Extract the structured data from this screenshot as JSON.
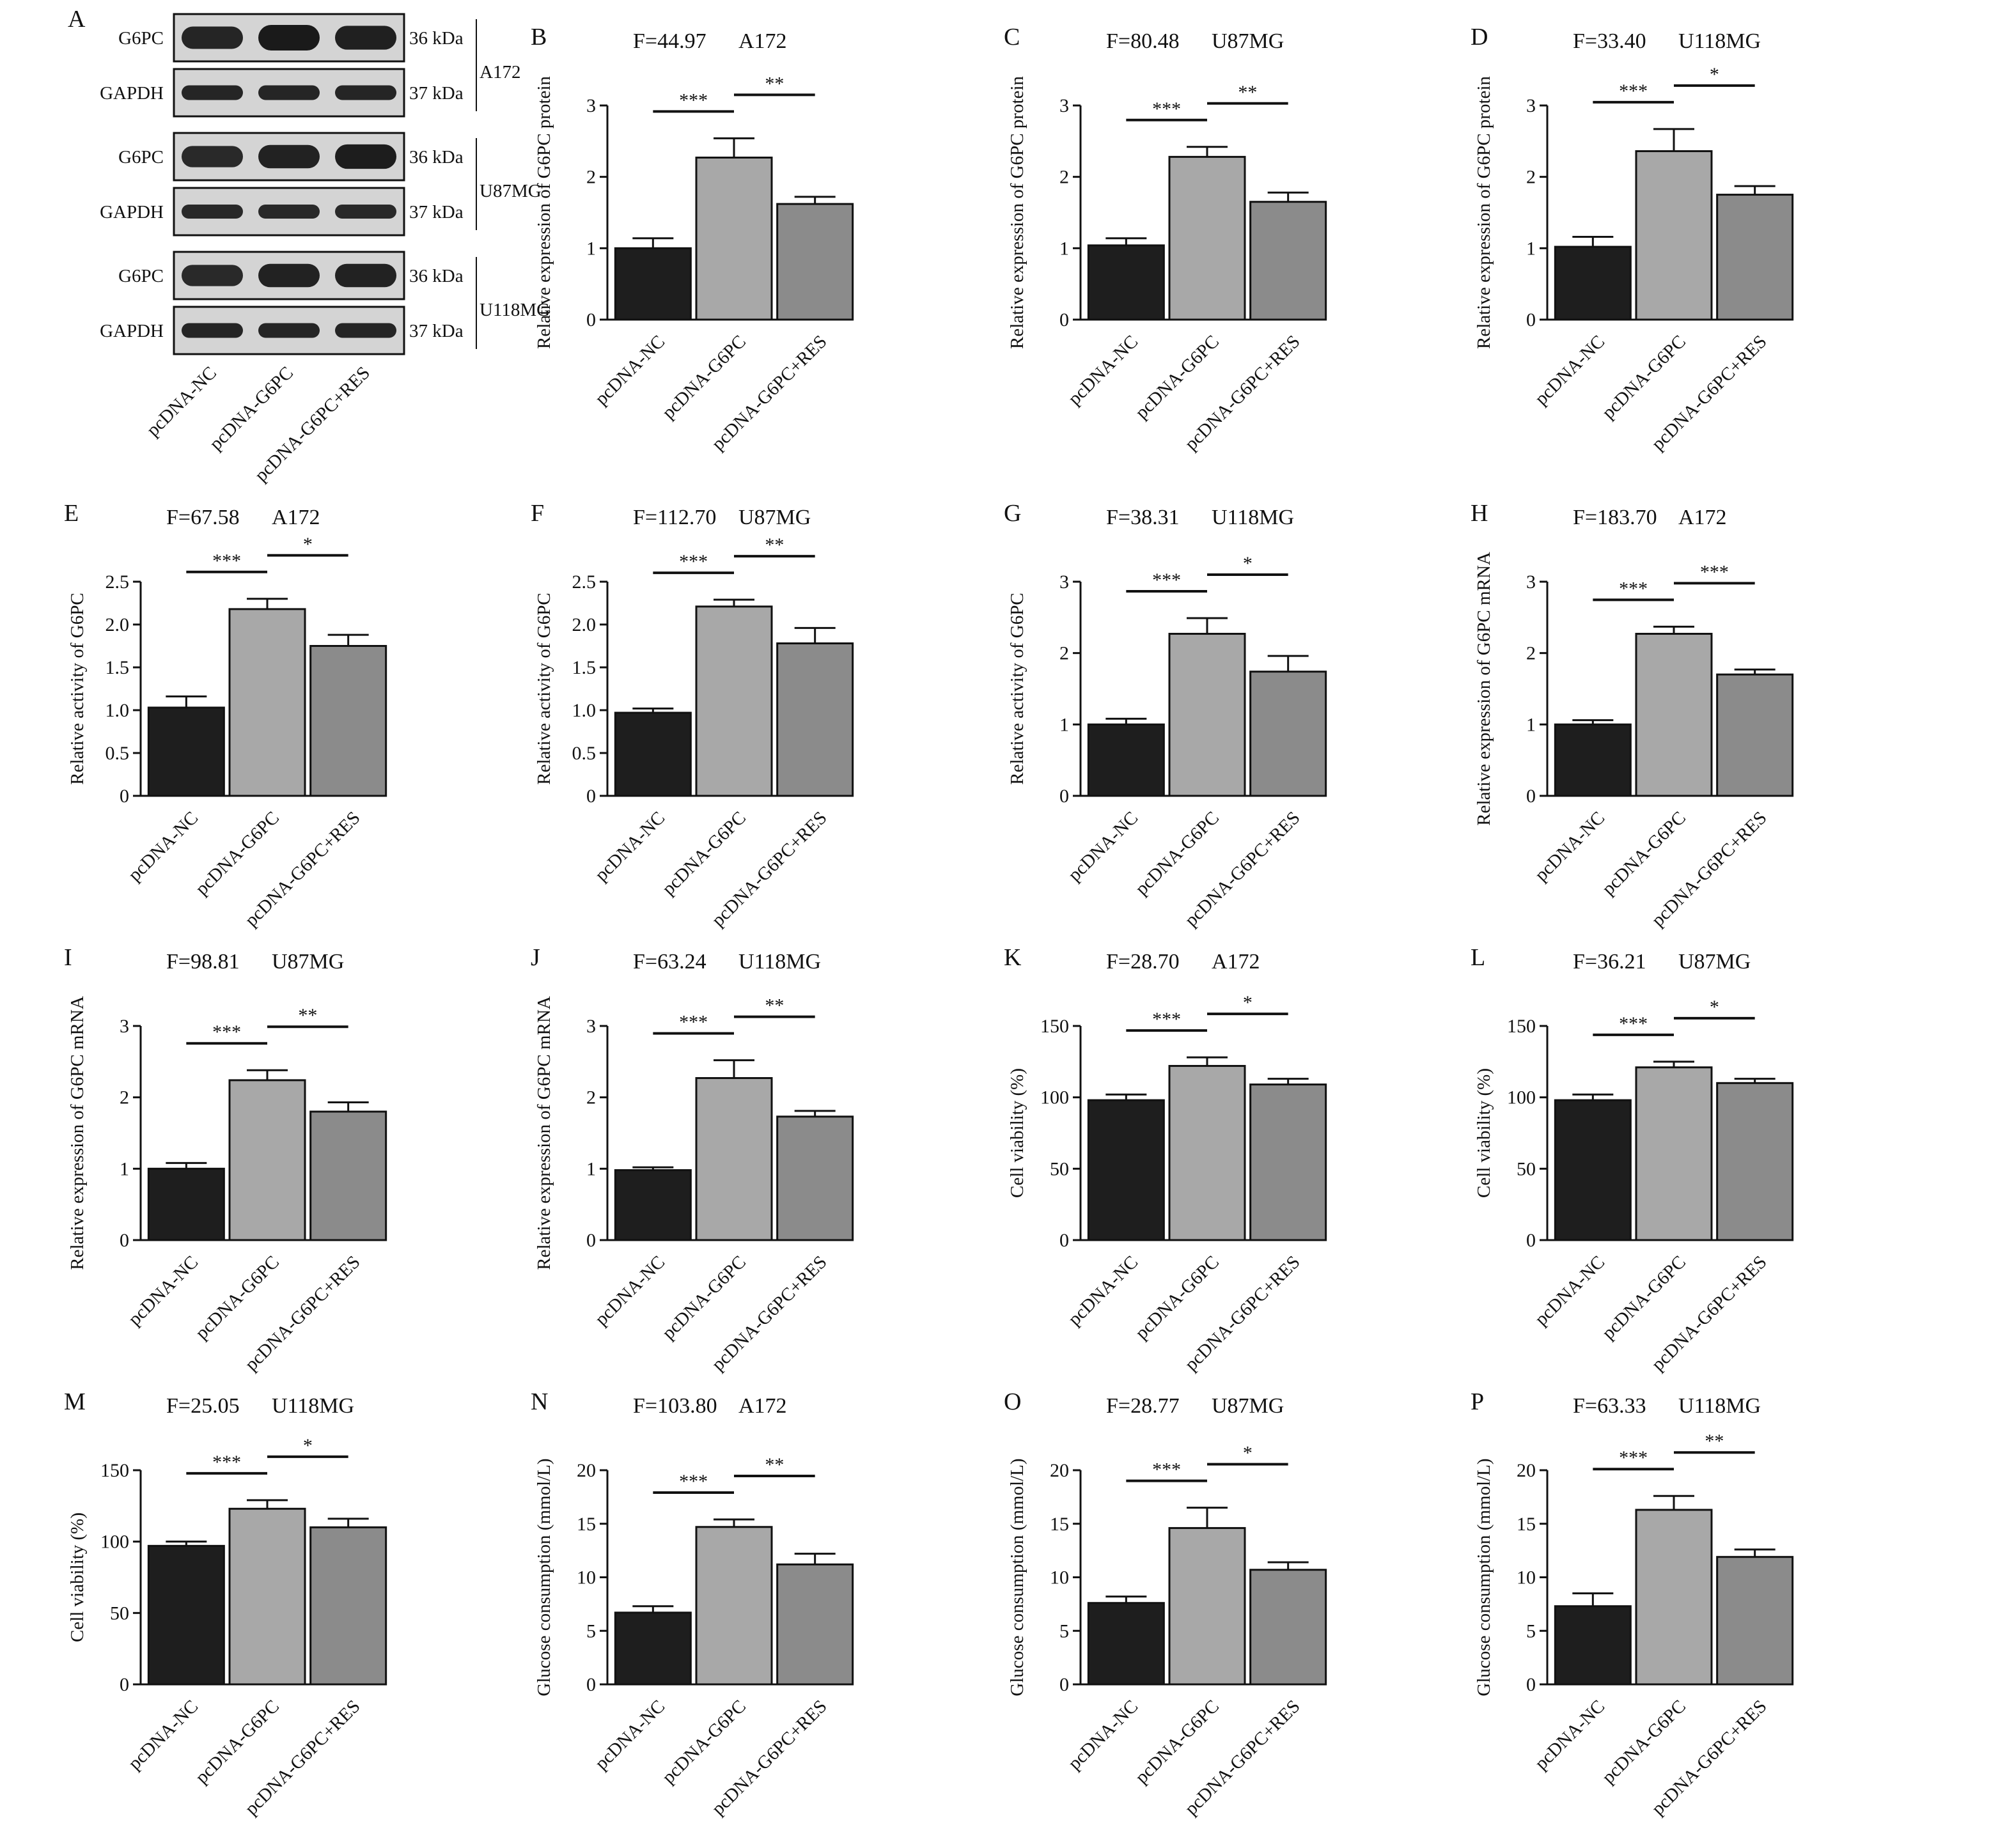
{
  "figure": {
    "categories": [
      "pcDNA-NC",
      "pcDNA-G6PC",
      "pcDNA-G6PC+RES"
    ],
    "colors": {
      "nc": "#1e1e1e",
      "g6pc": "#a8a8a8",
      "res": "#8b8b8b",
      "axis": "#111111",
      "blot_bg": "#d4d4d4",
      "band": "#1a1a1a"
    }
  },
  "blot": {
    "panel": "A",
    "rows": [
      {
        "label": "G6PC",
        "kda": "36 kDa",
        "strength": [
          0.85,
          1.0,
          0.92
        ]
      },
      {
        "label": "GAPDH",
        "kda": "37 kDa",
        "strength": [
          0.85,
          0.85,
          0.85
        ]
      },
      {
        "label": "G6PC",
        "kda": "36 kDa",
        "strength": [
          0.8,
          0.9,
          0.95
        ]
      },
      {
        "label": "GAPDH",
        "kda": "37 kDa",
        "strength": [
          0.8,
          0.8,
          0.8
        ]
      },
      {
        "label": "G6PC",
        "kda": "36 kDa",
        "strength": [
          0.8,
          0.9,
          0.9
        ]
      },
      {
        "label": "GAPDH",
        "kda": "37 kDa",
        "strength": [
          0.85,
          0.85,
          0.85
        ]
      }
    ],
    "cell_lines": [
      "A172",
      "U87MG",
      "U118MG"
    ]
  },
  "chart_data": [
    {
      "panel": "B",
      "type": "bar",
      "f_label": "F=44.97",
      "cell_line": "A172",
      "ylabel": "Relative expression of G6PC protein",
      "categories": [
        "pcDNA-NC",
        "pcDNA-G6PC",
        "pcDNA-G6PC+RES"
      ],
      "values": [
        1.0,
        2.27,
        1.62
      ],
      "errors": [
        0.14,
        0.27,
        0.1
      ],
      "ylim": [
        0,
        3
      ],
      "ticks": [
        "0",
        "1",
        "2",
        "3"
      ],
      "sig": [
        "***",
        "**"
      ]
    },
    {
      "panel": "C",
      "type": "bar",
      "f_label": "F=80.48",
      "cell_line": "U87MG",
      "ylabel": "Relative expression of G6PC protein",
      "categories": [
        "pcDNA-NC",
        "pcDNA-G6PC",
        "pcDNA-G6PC+RES"
      ],
      "values": [
        1.04,
        2.28,
        1.65
      ],
      "errors": [
        0.1,
        0.14,
        0.13
      ],
      "ylim": [
        0,
        3
      ],
      "ticks": [
        "0",
        "1",
        "2",
        "3"
      ],
      "sig": [
        "***",
        "**"
      ]
    },
    {
      "panel": "D",
      "type": "bar",
      "f_label": "F=33.40",
      "cell_line": "U118MG",
      "ylabel": "Relative expression of G6PC protein",
      "categories": [
        "pcDNA-NC",
        "pcDNA-G6PC",
        "pcDNA-G6PC+RES"
      ],
      "values": [
        1.02,
        2.36,
        1.75
      ],
      "errors": [
        0.14,
        0.31,
        0.12
      ],
      "ylim": [
        0,
        3
      ],
      "ticks": [
        "0",
        "1",
        "2",
        "3"
      ],
      "sig": [
        "***",
        "*"
      ]
    },
    {
      "panel": "E",
      "type": "bar",
      "f_label": "F=67.58",
      "cell_line": "A172",
      "ylabel": "Relative activity of G6PC",
      "categories": [
        "pcDNA-NC",
        "pcDNA-G6PC",
        "pcDNA-G6PC+RES"
      ],
      "values": [
        1.03,
        2.18,
        1.75
      ],
      "errors": [
        0.13,
        0.12,
        0.13
      ],
      "ylim": [
        0,
        2.5
      ],
      "ticks": [
        "0",
        "0.5",
        "1.0",
        "1.5",
        "2.0",
        "2.5"
      ],
      "sig": [
        "***",
        "*"
      ]
    },
    {
      "panel": "F",
      "type": "bar",
      "f_label": "F=112.70",
      "cell_line": "U87MG",
      "ylabel": "Relative activity of G6PC",
      "categories": [
        "pcDNA-NC",
        "pcDNA-G6PC",
        "pcDNA-G6PC+RES"
      ],
      "values": [
        0.97,
        2.21,
        1.78
      ],
      "errors": [
        0.05,
        0.08,
        0.18
      ],
      "ylim": [
        0,
        2.5
      ],
      "ticks": [
        "0",
        "0.5",
        "1.0",
        "1.5",
        "2.0",
        "2.5"
      ],
      "sig": [
        "***",
        "**"
      ]
    },
    {
      "panel": "G",
      "type": "bar",
      "f_label": "F=38.31",
      "cell_line": "U118MG",
      "ylabel": "Relative activity of G6PC",
      "categories": [
        "pcDNA-NC",
        "pcDNA-G6PC",
        "pcDNA-G6PC+RES"
      ],
      "values": [
        1.0,
        2.27,
        1.74
      ],
      "errors": [
        0.08,
        0.22,
        0.22
      ],
      "ylim": [
        0,
        3
      ],
      "ticks": [
        "0",
        "1",
        "2",
        "3"
      ],
      "sig": [
        "***",
        "*"
      ]
    },
    {
      "panel": "H",
      "type": "bar",
      "f_label": "F=183.70",
      "cell_line": "A172",
      "ylabel": "Relative expression of G6PC mRNA",
      "categories": [
        "pcDNA-NC",
        "pcDNA-G6PC",
        "pcDNA-G6PC+RES"
      ],
      "values": [
        1.0,
        2.27,
        1.7
      ],
      "errors": [
        0.06,
        0.1,
        0.07
      ],
      "ylim": [
        0,
        3
      ],
      "ticks": [
        "0",
        "1",
        "2",
        "3"
      ],
      "sig": [
        "***",
        "***"
      ]
    },
    {
      "panel": "I",
      "type": "bar",
      "f_label": "F=98.81",
      "cell_line": "U87MG",
      "ylabel": "Relative expression of G6PC mRNA",
      "categories": [
        "pcDNA-NC",
        "pcDNA-G6PC",
        "pcDNA-G6PC+RES"
      ],
      "values": [
        1.0,
        2.24,
        1.8
      ],
      "errors": [
        0.08,
        0.14,
        0.13
      ],
      "ylim": [
        0,
        3
      ],
      "ticks": [
        "0",
        "1",
        "2",
        "3"
      ],
      "sig": [
        "***",
        "**"
      ]
    },
    {
      "panel": "J",
      "type": "bar",
      "f_label": "F=63.24",
      "cell_line": "U118MG",
      "ylabel": "Relative expression of G6PC mRNA",
      "categories": [
        "pcDNA-NC",
        "pcDNA-G6PC",
        "pcDNA-G6PC+RES"
      ],
      "values": [
        0.98,
        2.27,
        1.73
      ],
      "errors": [
        0.04,
        0.25,
        0.08
      ],
      "ylim": [
        0,
        3
      ],
      "ticks": [
        "0",
        "1",
        "2",
        "3"
      ],
      "sig": [
        "***",
        "**"
      ]
    },
    {
      "panel": "K",
      "type": "bar",
      "f_label": "F=28.70",
      "cell_line": "A172",
      "ylabel": "Cell viability (%)",
      "categories": [
        "pcDNA-NC",
        "pcDNA-G6PC",
        "pcDNA-G6PC+RES"
      ],
      "values": [
        98,
        122,
        109
      ],
      "errors": [
        4,
        6,
        4
      ],
      "ylim": [
        0,
        150
      ],
      "ticks": [
        "0",
        "50",
        "100",
        "150"
      ],
      "sig": [
        "***",
        "*"
      ]
    },
    {
      "panel": "L",
      "type": "bar",
      "f_label": "F=36.21",
      "cell_line": "U87MG",
      "ylabel": "Cell viability (%)",
      "categories": [
        "pcDNA-NC",
        "pcDNA-G6PC",
        "pcDNA-G6PC+RES"
      ],
      "values": [
        98,
        121,
        110
      ],
      "errors": [
        4,
        4,
        3
      ],
      "ylim": [
        0,
        150
      ],
      "ticks": [
        "0",
        "50",
        "100",
        "150"
      ],
      "sig": [
        "***",
        "*"
      ]
    },
    {
      "panel": "M",
      "type": "bar",
      "f_label": "F=25.05",
      "cell_line": "U118MG",
      "ylabel": "Cell viability (%)",
      "categories": [
        "pcDNA-NC",
        "pcDNA-G6PC",
        "pcDNA-G6PC+RES"
      ],
      "values": [
        97,
        123,
        110
      ],
      "errors": [
        3,
        6,
        6
      ],
      "ylim": [
        0,
        150
      ],
      "ticks": [
        "0",
        "50",
        "100",
        "150"
      ],
      "sig": [
        "***",
        "*"
      ]
    },
    {
      "panel": "N",
      "type": "bar",
      "f_label": "F=103.80",
      "cell_line": "A172",
      "ylabel": "Glucose consumption (mmol/L)",
      "categories": [
        "pcDNA-NC",
        "pcDNA-G6PC",
        "pcDNA-G6PC+RES"
      ],
      "values": [
        6.7,
        14.7,
        11.2
      ],
      "errors": [
        0.6,
        0.7,
        1.0
      ],
      "ylim": [
        0,
        20
      ],
      "ticks": [
        "0",
        "5",
        "10",
        "15",
        "20"
      ],
      "sig": [
        "***",
        "**"
      ]
    },
    {
      "panel": "O",
      "type": "bar",
      "f_label": "F=28.77",
      "cell_line": "U87MG",
      "ylabel": "Glucose consumption (mmol/L)",
      "categories": [
        "pcDNA-NC",
        "pcDNA-G6PC",
        "pcDNA-G6PC+RES"
      ],
      "values": [
        7.6,
        14.6,
        10.7
      ],
      "errors": [
        0.6,
        1.9,
        0.7
      ],
      "ylim": [
        0,
        20
      ],
      "ticks": [
        "0",
        "5",
        "10",
        "15",
        "20"
      ],
      "sig": [
        "***",
        "*"
      ]
    },
    {
      "panel": "P",
      "type": "bar",
      "f_label": "F=63.33",
      "cell_line": "U118MG",
      "ylabel": "Glucose consumption (mmol/L)",
      "categories": [
        "pcDNA-NC",
        "pcDNA-G6PC",
        "pcDNA-G6PC+RES"
      ],
      "values": [
        7.3,
        16.3,
        11.9
      ],
      "errors": [
        1.2,
        1.3,
        0.7
      ],
      "ylim": [
        0,
        20
      ],
      "ticks": [
        "0",
        "5",
        "10",
        "15",
        "20"
      ],
      "sig": [
        "***",
        "**"
      ]
    }
  ]
}
